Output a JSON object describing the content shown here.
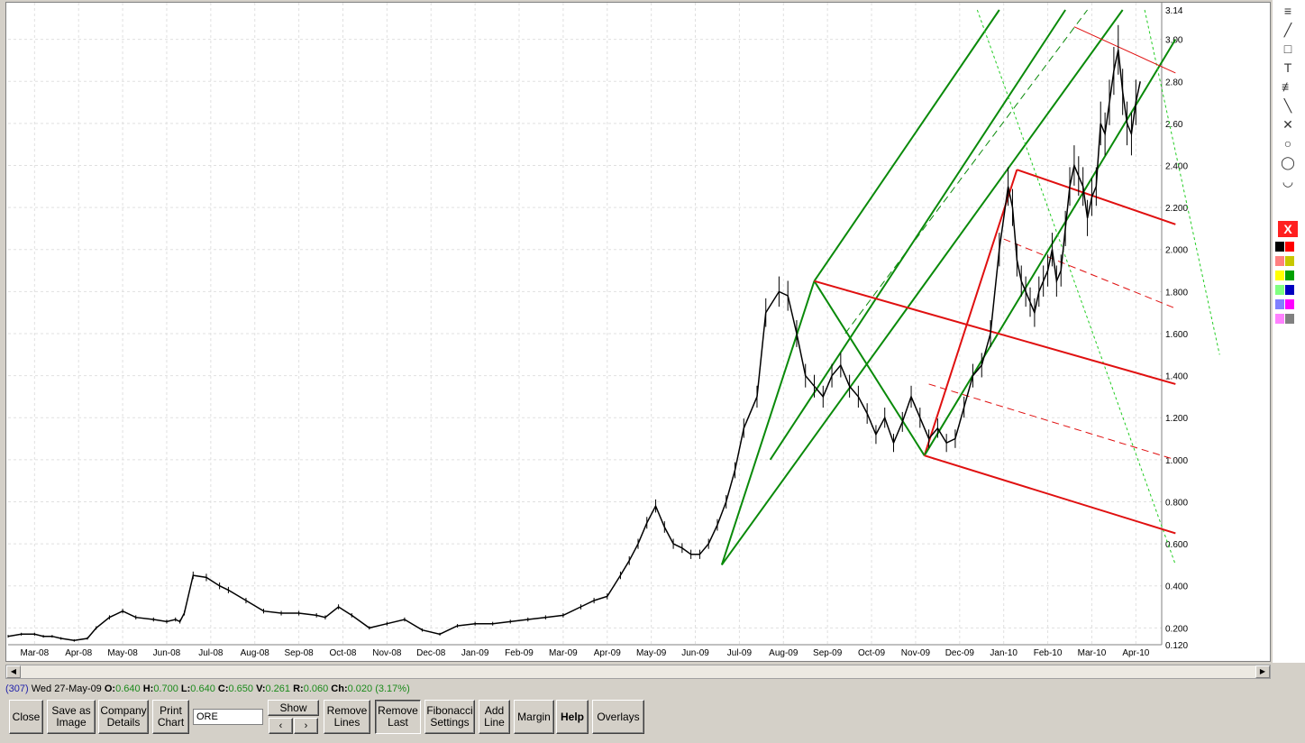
{
  "chart_data": {
    "type": "line",
    "title": "",
    "xlabel": "",
    "ylabel": "",
    "ylim": [
      0.12,
      3.14
    ],
    "y_ticks": [
      "3.14",
      "3.00",
      "2.80",
      "2.60",
      "2.400",
      "2.200",
      "2.000",
      "1.800",
      "1.600",
      "1.400",
      "1.200",
      "1.000",
      "0.800",
      "0.600",
      "0.400",
      "0.200",
      "0.120"
    ],
    "x_ticks": [
      "Mar-08",
      "Apr-08",
      "May-08",
      "Jun-08",
      "Jul-08",
      "Aug-08",
      "Sep-08",
      "Oct-08",
      "Nov-08",
      "Dec-08",
      "Jan-09",
      "Feb-09",
      "Mar-09",
      "Apr-09",
      "May-09",
      "Jun-09",
      "Jul-09",
      "Aug-09",
      "Sep-09",
      "Oct-09",
      "Nov-09",
      "Dec-09",
      "Jan-10",
      "Feb-10",
      "Mar-10",
      "Apr-10"
    ],
    "grid": true,
    "series": [
      {
        "color": "#000000",
        "x": [
          0,
          0.3,
          0.6,
          0.8,
          1.0,
          1.2,
          1.5,
          1.8,
          2.0,
          2.3,
          2.6,
          2.9,
          3.3,
          3.6,
          3.8,
          3.9,
          4.0,
          4.2,
          4.5,
          4.8,
          5.0,
          5.4,
          5.8,
          6.2,
          6.6,
          7.0,
          7.2,
          7.5,
          7.8,
          8.2,
          8.6,
          9.0,
          9.4,
          9.8,
          10.2,
          10.6,
          11.0,
          11.4,
          11.8,
          12.2,
          12.6,
          13.0,
          13.3,
          13.6,
          13.9,
          14.1,
          14.3,
          14.5,
          14.7,
          14.9,
          15.1,
          15.3,
          15.5,
          15.7,
          15.9,
          16.1,
          16.3,
          16.5,
          16.7,
          17.0,
          17.2,
          17.5,
          17.7,
          17.9,
          18.1,
          18.3,
          18.5,
          18.7,
          18.9,
          19.1,
          19.3,
          19.5,
          19.7,
          19.9,
          20.1,
          20.3,
          20.5,
          20.7,
          20.9,
          21.1,
          21.3,
          21.5,
          21.7,
          21.9,
          22.1,
          22.3,
          22.5,
          22.7,
          22.8,
          22.9,
          23.0,
          23.1,
          23.2,
          23.3,
          23.4,
          23.5,
          23.6,
          23.7,
          23.8,
          23.9,
          24.0,
          24.1,
          24.2,
          24.3,
          24.4,
          24.5,
          24.6,
          24.7,
          24.8,
          24.9,
          25.0,
          25.1,
          25.2,
          25.3,
          25.4,
          25.5,
          25.6,
          25.7
        ],
        "y": [
          0.16,
          0.17,
          0.17,
          0.16,
          0.16,
          0.15,
          0.14,
          0.15,
          0.2,
          0.25,
          0.28,
          0.25,
          0.24,
          0.23,
          0.24,
          0.23,
          0.27,
          0.45,
          0.44,
          0.4,
          0.38,
          0.33,
          0.28,
          0.27,
          0.27,
          0.26,
          0.25,
          0.3,
          0.26,
          0.2,
          0.22,
          0.24,
          0.19,
          0.17,
          0.21,
          0.22,
          0.22,
          0.23,
          0.24,
          0.25,
          0.26,
          0.3,
          0.33,
          0.35,
          0.45,
          0.52,
          0.6,
          0.7,
          0.78,
          0.68,
          0.6,
          0.58,
          0.55,
          0.55,
          0.6,
          0.69,
          0.8,
          0.95,
          1.15,
          1.3,
          1.7,
          1.8,
          1.78,
          1.6,
          1.4,
          1.35,
          1.3,
          1.4,
          1.45,
          1.35,
          1.3,
          1.22,
          1.12,
          1.2,
          1.08,
          1.18,
          1.3,
          1.2,
          1.1,
          1.15,
          1.08,
          1.1,
          1.25,
          1.4,
          1.45,
          1.6,
          2.0,
          2.3,
          2.2,
          1.95,
          1.85,
          1.8,
          1.75,
          1.7,
          1.8,
          1.85,
          1.9,
          2.0,
          1.85,
          1.9,
          2.1,
          2.3,
          2.4,
          2.35,
          2.3,
          2.15,
          2.25,
          2.3,
          2.6,
          2.55,
          2.7,
          2.85,
          2.95,
          2.75,
          2.6,
          2.55,
          2.7,
          2.8
        ]
      }
    ],
    "annotations": [
      {
        "type": "line",
        "color": "#00a000",
        "from": [
          16.2,
          0.5
        ],
        "to": [
          18.3,
          1.85
        ]
      },
      {
        "type": "line",
        "color": "#00a000",
        "from": [
          18.3,
          1.85
        ],
        "to": [
          20.8,
          1.02
        ]
      },
      {
        "type": "line",
        "color": "#ff0000",
        "from": [
          20.8,
          1.02
        ],
        "to": [
          22.9,
          2.38
        ]
      }
    ]
  },
  "toolbox": {
    "tool_icons": [
      "fibonacci-icon",
      "line-icon",
      "rectangle-icon",
      "text-icon",
      "fan-icon",
      "pencil-icon",
      "cross-lines-icon",
      "circle-icon",
      "ellipse-icon",
      "arc-icon"
    ],
    "delete_label": "X",
    "colors": [
      "#000000",
      "#ff0000",
      "#ff8080",
      "#c8c800",
      "#ffff00",
      "#00a000",
      "#80ff80",
      "#0000c0",
      "#8080ff",
      "#ff00ff",
      "#ff80ff",
      "#808080"
    ]
  },
  "status": {
    "count": "(307)",
    "date": "Wed 27-May-09",
    "open_label": "O:",
    "open_value": "0.640",
    "high_label": "H:",
    "high_value": "0.700",
    "low_label": "L:",
    "low_value": "0.640",
    "close_label": "C:",
    "close_value": "0.650",
    "volume_label": "V:",
    "volume_value": "0.261",
    "range_label": "R:",
    "range_value": "0.060",
    "change_label": "Ch:",
    "change_value": "0.020",
    "change_pct": "(3.17%)"
  },
  "buttons": {
    "close": "Close",
    "save_image_1": "Save as",
    "save_image_2": "Image",
    "company_1": "Company",
    "company_2": "Details",
    "print_1": "Print",
    "print_2": "Chart",
    "code_value": "ORE",
    "show": "Show",
    "prev": "‹",
    "next": "›",
    "remove_lines_1": "Remove",
    "remove_lines_2": "Lines",
    "remove_last_1": "Remove",
    "remove_last_2": "Last",
    "fib_1": "Fibonacci",
    "fib_2": "Settings",
    "add_line_1": "Add",
    "add_line_2": "Line",
    "margin": "Margin",
    "help": "Help",
    "overlays": "Overlays"
  }
}
